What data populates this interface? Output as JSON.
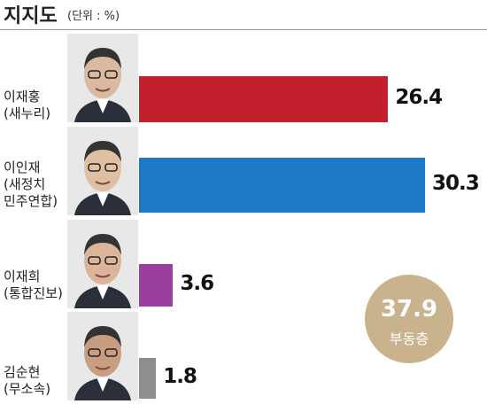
{
  "chart_data": {
    "type": "bar",
    "orientation": "horizontal",
    "title": "지지도",
    "subtitle": "(단위 : %)",
    "categories": [
      "이재홍\n(새누리)",
      "이인재\n(새정치\n민주연합)",
      "이재희\n(통합진보)",
      "김순현\n(무소속)"
    ],
    "values": [
      26.4,
      30.3,
      3.6,
      1.8
    ],
    "colors": [
      "#c21f2f",
      "#1f78c6",
      "#9a3f9e",
      "#8e8e8e"
    ],
    "annotation": {
      "value": 37.9,
      "text": "부동층",
      "color": "#c9b38c"
    }
  }
}
